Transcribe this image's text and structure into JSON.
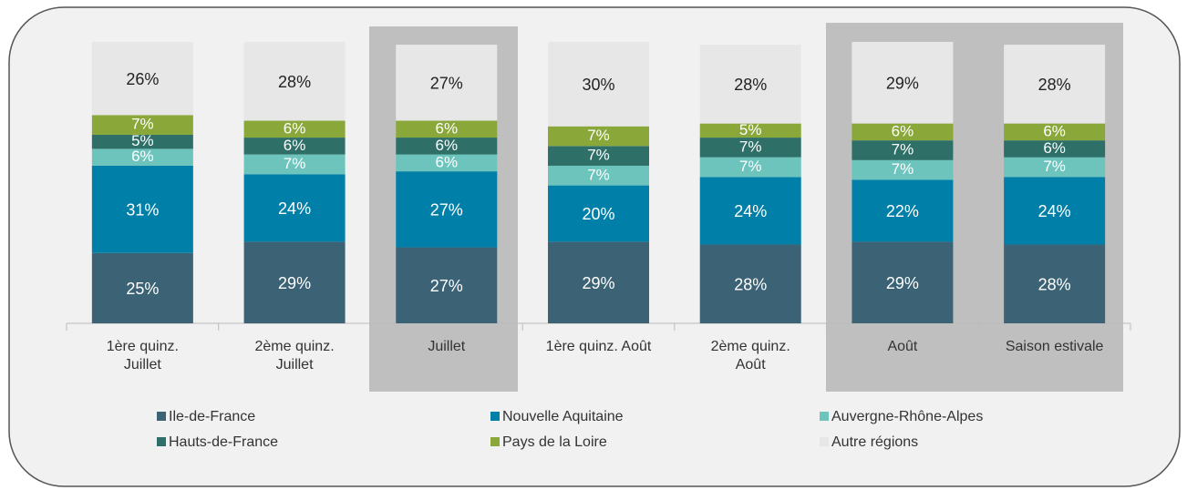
{
  "chart_data": {
    "type": "stacked_bar",
    "categories": [
      "1ère quinz. Juillet",
      "2ème quinz. Juillet",
      "Juillet",
      "1ère quinz. Août",
      "2ème quinz. Août",
      "Août",
      "Saison estivale"
    ],
    "series": [
      {
        "name": "Ile-de-France",
        "color": "#3b6275",
        "values": [
          25,
          29,
          27,
          29,
          28,
          29,
          28
        ],
        "value_labels": [
          "25%",
          "29%",
          "27%",
          "29%",
          "28%",
          "29%",
          "28%"
        ]
      },
      {
        "name": "Nouvelle Aquitaine",
        "color": "#0080a8",
        "values": [
          31,
          24,
          27,
          20,
          24,
          22,
          24
        ],
        "value_labels": [
          "31%",
          "24%",
          "27%",
          "20%",
          "24%",
          "22%",
          "24%"
        ]
      },
      {
        "name": "Auvergne-Rhône-Alpes",
        "color": "#6dc4bd",
        "values": [
          6,
          7,
          6,
          7,
          7,
          7,
          7
        ],
        "value_labels": [
          "6%",
          "7%",
          "6%",
          "7%",
          "7%",
          "7%",
          "7%"
        ]
      },
      {
        "name": "Hauts-de-France",
        "color": "#2e6f68",
        "values": [
          5,
          6,
          6,
          7,
          7,
          7,
          6
        ],
        "value_labels": [
          "5%",
          "6%",
          "6%",
          "7%",
          "7%",
          "7%",
          "6%"
        ]
      },
      {
        "name": "Pays de la Loire",
        "color": "#8aa83a",
        "values": [
          7,
          6,
          6,
          7,
          5,
          6,
          6
        ],
        "value_labels": [
          "7%",
          "6%",
          "6%",
          "7%",
          "5%",
          "6%",
          "6%"
        ]
      },
      {
        "name": "Autre régions",
        "color": "#e7e7e7",
        "values": [
          26,
          28,
          27,
          30,
          28,
          29,
          28
        ],
        "value_labels": [
          "26%",
          "28%",
          "27%",
          "30%",
          "28%",
          "29%",
          "28%"
        ]
      }
    ]
  }
}
